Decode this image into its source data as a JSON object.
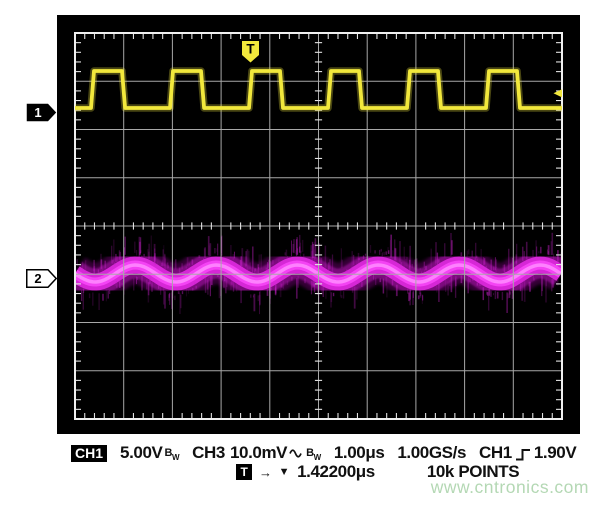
{
  "page": {
    "watermark": "www.cntronics.com",
    "watermark_color": "#b4d8b4",
    "background": "#ffffff"
  },
  "scope": {
    "bezel_color": "#000000",
    "screen_bg": "#000000",
    "grid": {
      "inner_line_color": "#a8a8a8",
      "border_color": "#f0f0f0",
      "tick_color": "#e2e2e2",
      "minor_ticks_per_div": 5
    },
    "trigger_marker_label": "T",
    "channel_markers": [
      {
        "label": "1",
        "style": "filled-black"
      },
      {
        "label": "2",
        "style": "outline-white"
      }
    ]
  },
  "readout": {
    "line1": {
      "ch1_badge": "CH1",
      "ch1_scale": "5.00V",
      "bw_b": "B",
      "bw_w": "W",
      "ch3_label": "CH3",
      "ch3_scale": "10.0mV",
      "timebase": "1.00μs",
      "sample_rate": "1.00GS/s",
      "trigger_source": "CH1",
      "trigger_level": "1.90V"
    },
    "line2": {
      "t_badge": "T",
      "arrow": "→",
      "slope_icon": "▼",
      "delay": "1.42200μs",
      "points": "10k POINTS"
    }
  },
  "chart_data": {
    "type": "line",
    "title": "Oscilloscope screen: CH1 square wave (top) and CH3 noisy sine crosstalk band (bottom)",
    "x_axis": {
      "divisions": 10,
      "time_per_div": "1.00μs",
      "sample_rate": "1.00GS/s",
      "record_length": "10k POINTS"
    },
    "y_axis": {
      "divisions": 8
    },
    "series": [
      {
        "name": "CH1",
        "shape": "square",
        "color": "#f2e83c",
        "glow_color": "#f2e83c",
        "volts_per_div": "5.00V",
        "low_level_div": 1.554,
        "high_level_div": 0.787,
        "first_rising_edge_div": 0.329,
        "period_div": 1.622,
        "high_width_div": 0.575,
        "edge_slope_div": 0.062
      },
      {
        "name": "CH3",
        "shape": "noisy_sine",
        "color": "#e832e8",
        "volts_per_div": "10.0mV",
        "midline_div": 4.985,
        "amplitude_div": 0.176,
        "period_div": 1.663,
        "trough_at_div": 0.411,
        "spike_count": 430
      }
    ],
    "trigger": {
      "source": "CH1",
      "slope": "rising",
      "level": "1.90V",
      "delay": "1.42200μs",
      "marker_x_div": 3.604,
      "level_arrow_y_div": 1.244
    },
    "channel_indicator_y_div": [
      1.637,
      5.095
    ]
  }
}
